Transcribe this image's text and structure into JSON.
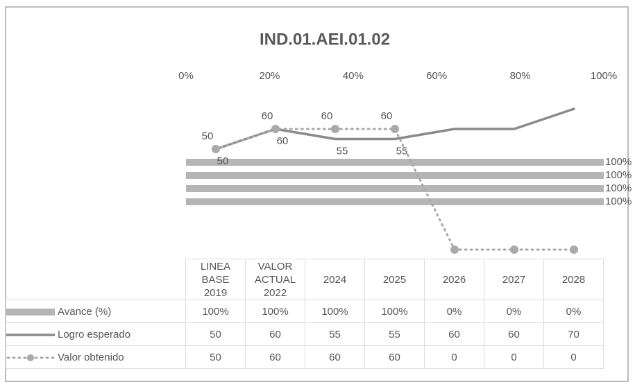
{
  "chart_data": {
    "type": "combo",
    "title": "IND.01.AEI.01.02",
    "categories": [
      "LINEA\nBASE\n2019",
      "VALOR\nACTUAL\n2022",
      "2024",
      "2025",
      "2026",
      "2027",
      "2028"
    ],
    "xlim": [
      0,
      100
    ],
    "xticks": [
      {
        "value": 0,
        "label": "0%"
      },
      {
        "value": 20,
        "label": "20%"
      },
      {
        "value": 40,
        "label": "40%"
      },
      {
        "value": 60,
        "label": "60%"
      },
      {
        "value": 80,
        "label": "80%"
      },
      {
        "value": 100,
        "label": "100%"
      }
    ],
    "ylim": [
      0,
      70
    ],
    "series": [
      {
        "name": "Avance (%)",
        "type": "bar",
        "color": "#b5b5b5",
        "values": [
          100,
          100,
          100,
          100,
          0,
          0,
          0
        ],
        "value_labels": [
          "100%",
          "100%",
          "100%",
          "100%",
          "0%",
          "0%",
          "0%"
        ]
      },
      {
        "name": "Logro esperado",
        "type": "line",
        "color": "#8a8a8a",
        "values": [
          50,
          60,
          55,
          55,
          60,
          60,
          70
        ]
      },
      {
        "name": "Valor obtenido",
        "type": "dotted",
        "color": "#a9a9a9",
        "values": [
          50,
          60,
          60,
          60,
          0,
          0,
          0
        ]
      }
    ]
  }
}
